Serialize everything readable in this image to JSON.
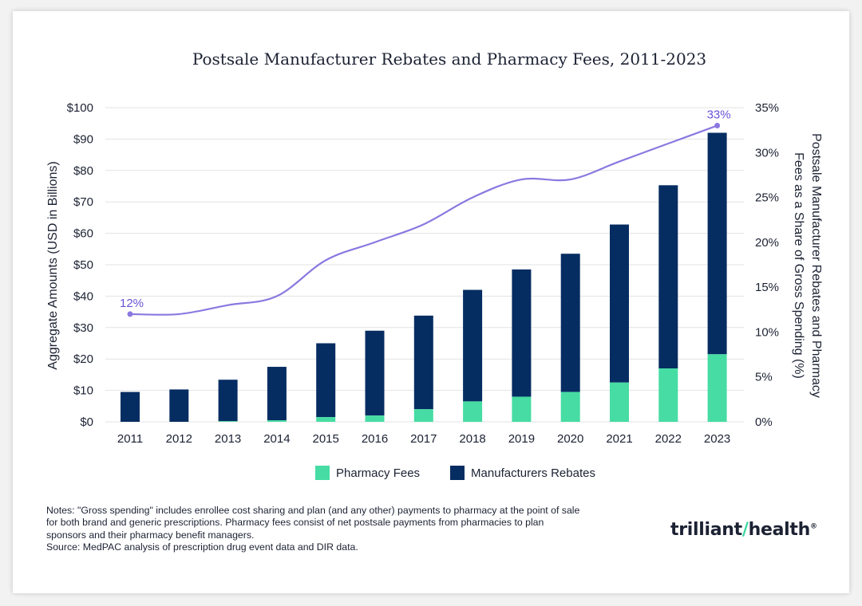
{
  "chart_data": {
    "type": "bar",
    "stacked": true,
    "title": "Postsale Manufacturer Rebates and Pharmacy Fees, 2011-2023",
    "categories": [
      "2011",
      "2012",
      "2013",
      "2014",
      "2015",
      "2016",
      "2017",
      "2018",
      "2019",
      "2020",
      "2021",
      "2022",
      "2023"
    ],
    "series": [
      {
        "name": "Pharmacy Fees",
        "color": "#46dca3",
        "axis": "left",
        "values": [
          0,
          0,
          0.2,
          0.5,
          1.5,
          2,
          4,
          6.5,
          8,
          9.5,
          12.5,
          17,
          21.5
        ]
      },
      {
        "name": "Manufacturers Rebates",
        "color": "#062d62",
        "axis": "left",
        "values": [
          9.5,
          10.3,
          13.2,
          17,
          23.5,
          27,
          29.8,
          35.5,
          40.5,
          44,
          50.3,
          58.3,
          70.5
        ]
      },
      {
        "name": "Share of Gross Spending",
        "color": "#8b78e0",
        "axis": "right",
        "type": "line",
        "values": [
          12,
          12,
          13,
          14,
          18,
          20,
          22,
          25,
          27,
          27,
          29,
          31,
          33
        ]
      }
    ],
    "ylabel": "Aggregate Amounts (USD in Billions)",
    "y2label_line1": "Postsale Manufacturer Rebates and Pharmacy",
    "y2label_line2": "Fees as a Share of Gross Spending (%)",
    "ylim": [
      0,
      100
    ],
    "y2lim": [
      0,
      35
    ],
    "yticks": [
      "$0",
      "$10",
      "$20",
      "$30",
      "$40",
      "$50",
      "$60",
      "$70",
      "$80",
      "$90",
      "$100"
    ],
    "y2ticks": [
      "0%",
      "5%",
      "10%",
      "15%",
      "20%",
      "25%",
      "30%",
      "35%"
    ],
    "annotations": {
      "first": "12%",
      "last": "33%"
    },
    "legend": [
      "Pharmacy Fees",
      "Manufacturers Rebates"
    ],
    "grid": true
  },
  "notes": [
    "Notes: \"Gross spending\" includes enrollee cost sharing and plan (and any other) payments to pharmacy at the point of sale",
    "for both brand and generic prescriptions. Pharmacy fees consist of net postsale payments from pharmacies to plan",
    "sponsors and their pharmacy benefit managers.",
    "Source: MedPAC analysis of prescription drug event data and DIR data."
  ],
  "logo": {
    "part1": "trilliant",
    "part2": "health",
    "reg": "®"
  }
}
